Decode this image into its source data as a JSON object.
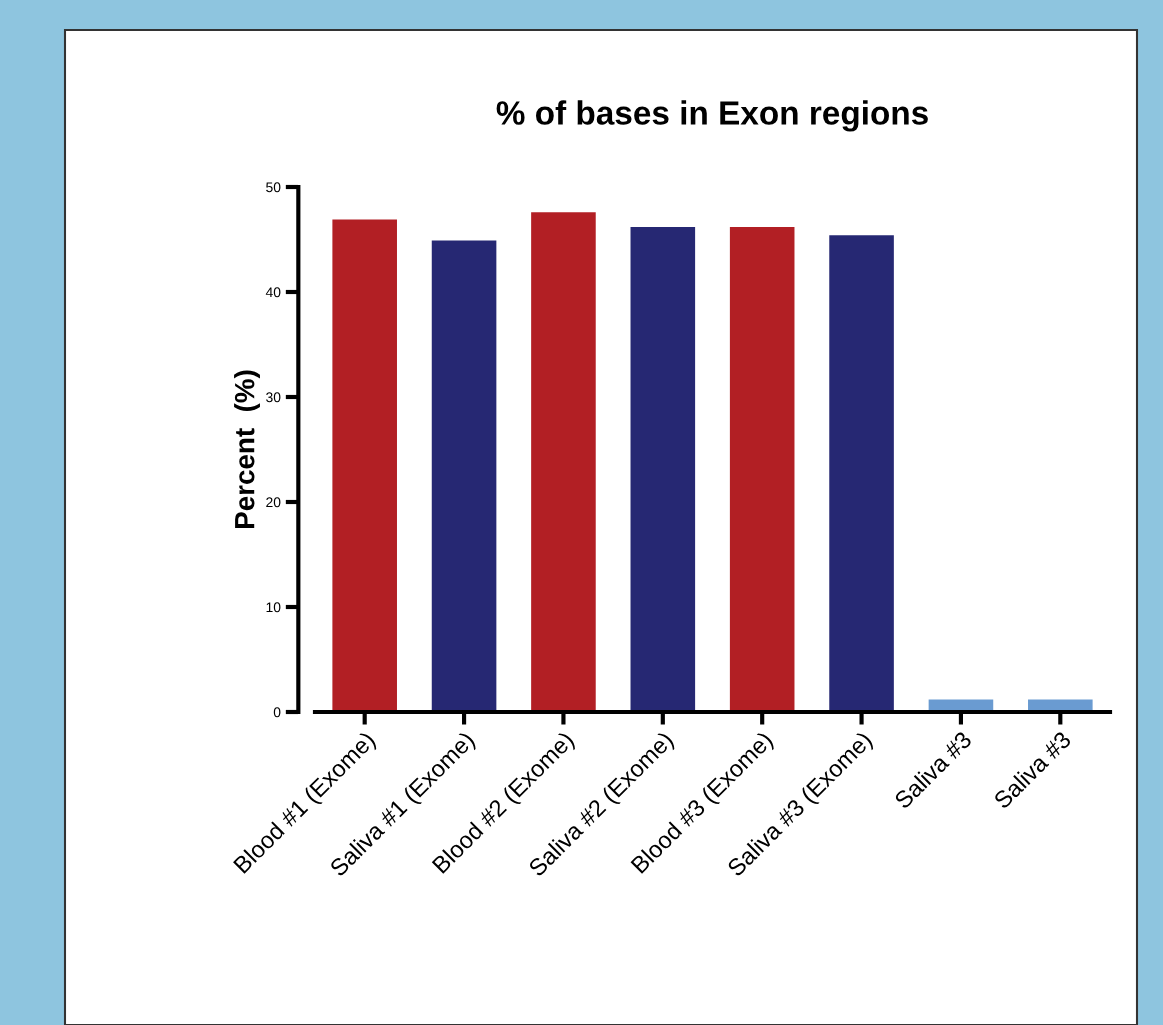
{
  "chart_data": {
    "type": "bar",
    "title": "% of bases in Exon regions",
    "ylabel": "Percent  (%)",
    "categories": [
      "Blood #1 (Exome)",
      "Saliva #1 (Exome)",
      "Blood #2 (Exome)",
      "Saliva #2 (Exome)",
      "Blood #3 (Exome)",
      "Saliva #3 (Exome)",
      "Saliva #3",
      "Saliva #3"
    ],
    "values": [
      46.9,
      44.9,
      47.6,
      46.2,
      46.2,
      45.4,
      1.2,
      1.2
    ],
    "colors": [
      "#b21f24",
      "#262873",
      "#b21f24",
      "#262873",
      "#b21f24",
      "#262873",
      "#6a9bd1",
      "#6a9bd1"
    ],
    "ylim": [
      0,
      50
    ],
    "yticks": [
      0,
      10,
      20,
      30,
      40,
      50
    ],
    "grid": false,
    "legend": false
  }
}
